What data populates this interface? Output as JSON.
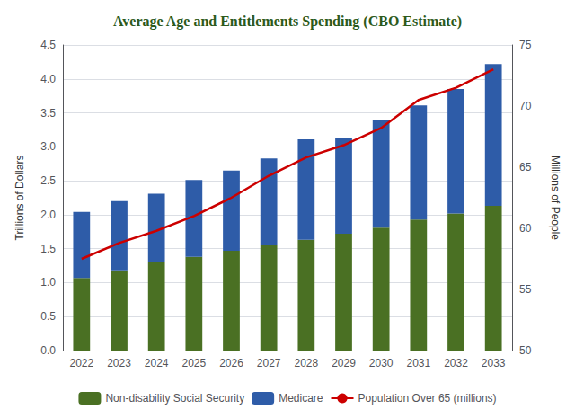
{
  "chart_data": {
    "type": "bar",
    "title": "Average Age and Entitlements Spending (CBO Estimate)",
    "categories": [
      "2022",
      "2023",
      "2024",
      "2025",
      "2026",
      "2027",
      "2028",
      "2029",
      "2030",
      "2031",
      "2032",
      "2033"
    ],
    "series": [
      {
        "name": "Non-disability Social Security",
        "type": "bar",
        "color": "#4a7023",
        "values": [
          1.07,
          1.18,
          1.3,
          1.38,
          1.47,
          1.55,
          1.63,
          1.72,
          1.81,
          1.93,
          2.02,
          2.13
        ]
      },
      {
        "name": "Medicare",
        "type": "bar",
        "color": "#2e5ca8",
        "values": [
          0.97,
          1.02,
          1.01,
          1.13,
          1.18,
          1.28,
          1.48,
          1.41,
          1.59,
          1.68,
          1.83,
          2.09
        ]
      },
      {
        "name": "Population Over 65 (millions)",
        "type": "line",
        "axis": "y2",
        "color": "#cc0000",
        "values": [
          57.5,
          58.8,
          59.8,
          61.0,
          62.5,
          64.3,
          65.8,
          66.8,
          68.2,
          70.5,
          71.5,
          73.0
        ]
      }
    ],
    "stacked": true,
    "ylabel": "Trillions of Dollars",
    "y2label": "Millions of People",
    "ylim": [
      0,
      4.5
    ],
    "yticks": [
      {
        "value": 0,
        "label": "0.0"
      },
      0.5,
      {
        "value": 1,
        "label": "1.0"
      },
      1.5,
      {
        "value": 2,
        "label": "2.0"
      },
      2.5,
      {
        "value": 3,
        "label": "3.0"
      },
      3.5,
      {
        "value": 4,
        "label": "4.0"
      },
      4.5
    ],
    "y2lim": [
      50,
      75
    ],
    "y2ticks": [
      50,
      55,
      60,
      65,
      70,
      75
    ],
    "grid": true,
    "legend": "bottom"
  }
}
